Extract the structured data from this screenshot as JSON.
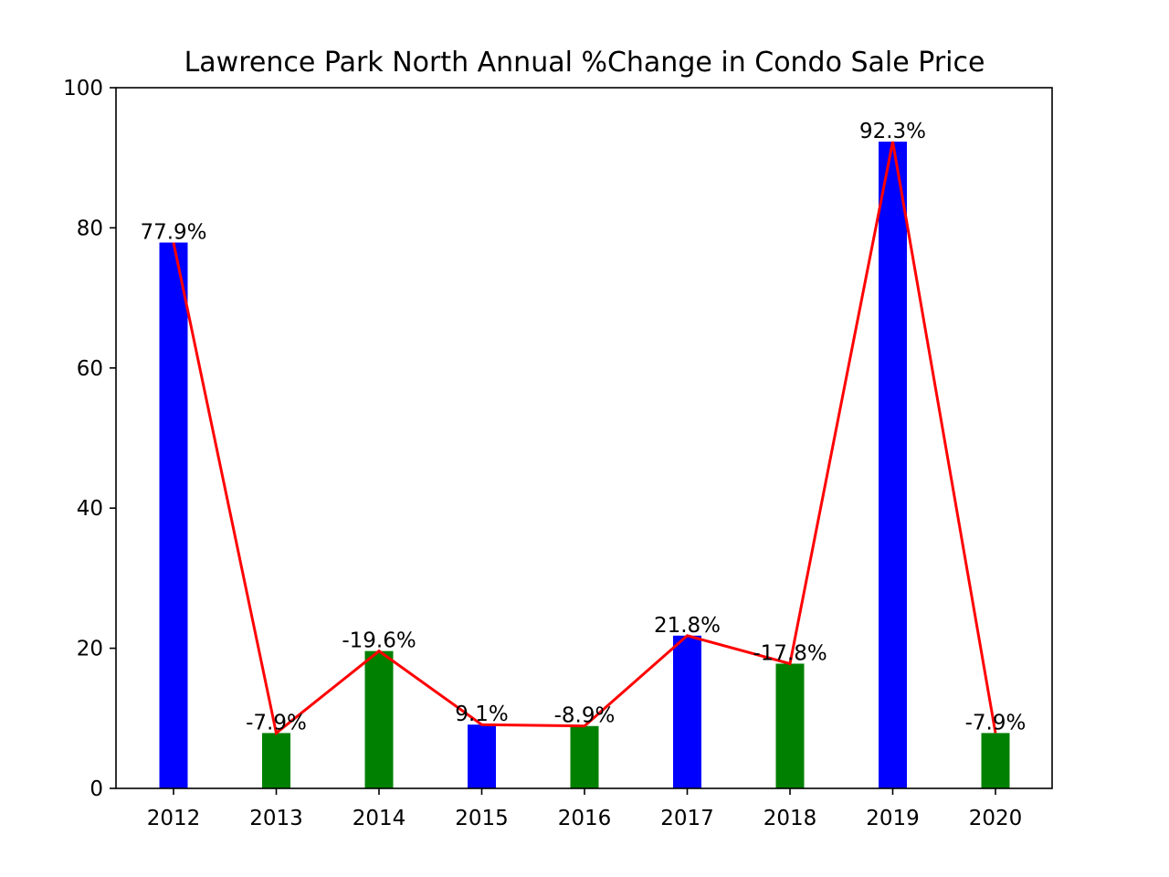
{
  "chart_data": {
    "type": "bar",
    "title": "Lawrence Park North Annual %Change in Condo Sale Price",
    "xlabel": "",
    "ylabel": "",
    "categories": [
      "2012",
      "2013",
      "2014",
      "2015",
      "2016",
      "2017",
      "2018",
      "2019",
      "2020"
    ],
    "values": [
      77.9,
      7.9,
      19.6,
      9.1,
      8.9,
      21.8,
      17.8,
      92.3,
      7.9
    ],
    "value_labels": [
      "77.9%",
      "-7.9%",
      "-19.6%",
      "9.1%",
      "-8.9%",
      "21.8%",
      "-17.8%",
      "92.3%",
      "-7.9%"
    ],
    "bar_colors": [
      "#0000ff",
      "#008000",
      "#008000",
      "#0000ff",
      "#008000",
      "#0000ff",
      "#008000",
      "#0000ff",
      "#008000"
    ],
    "line_color": "#ff0000",
    "positive_color": "#0000ff",
    "negative_color": "#008000",
    "ylim": [
      0,
      100
    ],
    "yticks": [
      0,
      20,
      40,
      60,
      80,
      100
    ],
    "grid": false,
    "legend": "none",
    "overlay": "line"
  }
}
